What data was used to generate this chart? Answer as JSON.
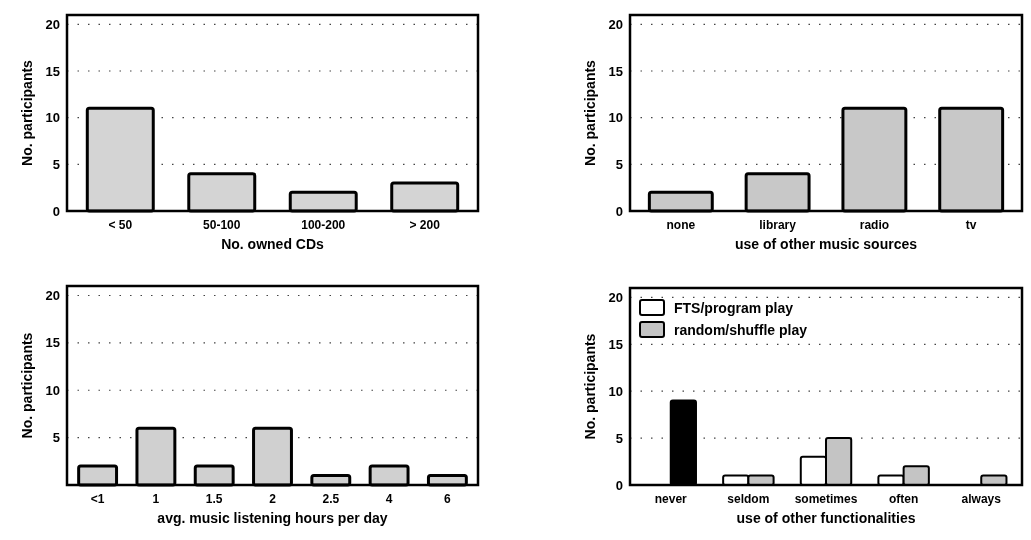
{
  "chart_data": [
    {
      "type": "bar",
      "xlabel": "No. owned CDs",
      "ylabel": "No. participants",
      "categories": [
        "< 50",
        "50-100",
        "100-200",
        "> 200"
      ],
      "values": [
        11,
        4,
        2,
        3
      ],
      "color": "#d4d4d4",
      "ylim": [
        0,
        21
      ],
      "yticks": [
        0,
        5,
        10,
        15,
        20
      ],
      "grid": "y"
    },
    {
      "type": "bar",
      "xlabel": "use of other music sources",
      "ylabel": "No. participants",
      "categories": [
        "none",
        "library",
        "radio",
        "tv"
      ],
      "values": [
        2,
        4,
        11,
        11
      ],
      "color": "#c8c8c8",
      "ylim": [
        0,
        21
      ],
      "yticks": [
        0,
        5,
        10,
        15,
        20
      ],
      "grid": "y"
    },
    {
      "type": "bar",
      "xlabel": "avg. music listening hours per day",
      "ylabel": "No. participants",
      "categories": [
        "<1",
        "1",
        "1.5",
        "2",
        "2.5",
        "4",
        "6"
      ],
      "values": [
        2,
        6,
        2,
        6,
        1,
        2,
        1
      ],
      "color": "#d0d0d0",
      "ylim": [
        0,
        21
      ],
      "yticks": [
        5,
        10,
        15,
        20
      ],
      "grid": "y"
    },
    {
      "type": "bar",
      "xlabel": "use of other functionalities",
      "ylabel": "No. participants",
      "categories": [
        "never",
        "seldom",
        "sometimes",
        "often",
        "always"
      ],
      "series": [
        {
          "name": "FTS/program play",
          "color": "#ffffff",
          "values": [
            0,
            1,
            3,
            1,
            0
          ]
        },
        {
          "name": "random/shuffle play",
          "color": "#c4c4c4",
          "colors": [
            "#000000",
            "#c4c4c4",
            "#c4c4c4",
            "#c4c4c4",
            "#c4c4c4"
          ],
          "values": [
            9,
            1,
            5,
            2,
            1
          ]
        }
      ],
      "ylim": [
        0,
        21
      ],
      "yticks": [
        0,
        5,
        10,
        15,
        20
      ],
      "grid": "y",
      "legend": "top left"
    }
  ]
}
